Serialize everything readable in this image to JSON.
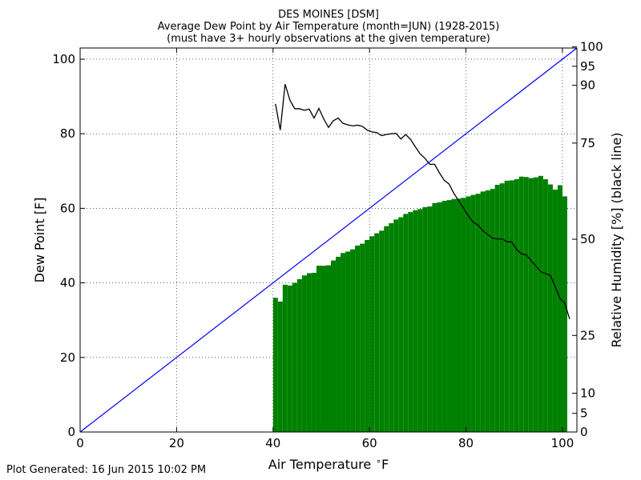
{
  "chart_data": {
    "type": "bar",
    "title_lines": [
      "DES MOINES [DSM]",
      "Average Dew Point by Air Temperature (month=JUN) (1928-2015)",
      "(must have 3+ hourly observations at the given temperature)"
    ],
    "xlabel": "Air Temperature $^\\circ$F",
    "xlabel_text": "Air Temperature",
    "xlabel_unit": "F",
    "ylabel": "Dew Point [F]",
    "y2label": "Relative Humidity [%] (black line)",
    "xlim": [
      0,
      103
    ],
    "ylim": [
      0,
      103
    ],
    "x_ticks": [
      0,
      20,
      40,
      60,
      80,
      100
    ],
    "y_ticks": [
      0,
      20,
      40,
      60,
      80,
      100
    ],
    "y2_ticks": [
      {
        "label": "0",
        "dewpoint": 0
      },
      {
        "label": "5",
        "dewpoint": 5
      },
      {
        "label": "10",
        "dewpoint": 10.4
      },
      {
        "label": "25",
        "dewpoint": 25.9
      },
      {
        "label": "50",
        "dewpoint": 51.7
      },
      {
        "label": "75",
        "dewpoint": 77.5
      },
      {
        "label": "90",
        "dewpoint": 93.0
      },
      {
        "label": "95",
        "dewpoint": 98.1
      },
      {
        "label": "100",
        "dewpoint": 103.3
      }
    ],
    "grid": true,
    "reference_line": {
      "name": "1:1 line",
      "color": "#0000ff",
      "from": [
        0,
        0
      ],
      "to": [
        103,
        103
      ]
    },
    "bar_color": "#008000",
    "rh_line_color": "#000000",
    "dewpoint_bars": {
      "x": [
        40,
        41,
        42,
        43,
        44,
        45,
        46,
        47,
        48,
        49,
        50,
        51,
        52,
        53,
        54,
        55,
        56,
        57,
        58,
        59,
        60,
        61,
        62,
        63,
        64,
        65,
        66,
        67,
        68,
        69,
        70,
        71,
        72,
        73,
        74,
        75,
        76,
        77,
        78,
        79,
        80,
        81,
        82,
        83,
        84,
        85,
        86,
        87,
        88,
        89,
        90,
        91,
        92,
        93,
        94,
        95,
        96,
        97,
        98,
        99,
        100,
        101
      ],
      "values": [
        36,
        35,
        39.5,
        39.3,
        40,
        41,
        42,
        42.6,
        42.7,
        44.6,
        44.6,
        44.7,
        46,
        47,
        48,
        48.4,
        49,
        50,
        50.5,
        51.5,
        52.5,
        53.3,
        54,
        55.2,
        56,
        57,
        57.6,
        58.5,
        59,
        59.5,
        59.8,
        60.3,
        60.5,
        61.4,
        61.6,
        62,
        62.2,
        62.5,
        62.6,
        62.8,
        63.2,
        63.6,
        63.9,
        64.5,
        64.8,
        65.2,
        66.3,
        66.7,
        67.4,
        67.5,
        67.8,
        68.5,
        68.4,
        68.1,
        68.3,
        68.7,
        67.8,
        66.4,
        65,
        66.2,
        63.2,
        0
      ]
    },
    "rh_line": {
      "x": [
        40,
        41,
        42,
        43,
        44,
        45,
        46,
        47,
        48,
        49,
        50,
        51,
        52,
        53,
        54,
        55,
        56,
        57,
        58,
        59,
        60,
        61,
        62,
        63,
        64,
        65,
        66,
        67,
        68,
        69,
        70,
        71,
        72,
        73,
        74,
        75,
        76,
        77,
        78,
        79,
        80,
        81,
        82,
        83,
        84,
        85,
        86,
        87,
        88,
        89,
        90,
        91,
        92,
        93,
        94,
        95,
        96,
        97,
        98,
        99,
        100,
        101
      ],
      "dewpoint": [
        88,
        81,
        93.3,
        89,
        86.7,
        86.7,
        86.3,
        86.6,
        84.2,
        86.8,
        84,
        81.7,
        83.5,
        84.2,
        82.8,
        82.4,
        82.1,
        82.3,
        82,
        81,
        80.5,
        80.3,
        79.5,
        79.8,
        80,
        80.1,
        78.6,
        79.8,
        78.5,
        76.5,
        74.6,
        73.4,
        71.8,
        71.8,
        69.5,
        67.5,
        66.5,
        64,
        62,
        60,
        58,
        56.3,
        55.5,
        54,
        53,
        52,
        51.8,
        51.8,
        51,
        51,
        49,
        47.8,
        47.5,
        46,
        44.5,
        43,
        42.5,
        42,
        39,
        35.8,
        34.5,
        30.3
      ]
    }
  },
  "footer": {
    "generated": "Plot Generated: 16 Jun 2015 10:02 PM"
  }
}
